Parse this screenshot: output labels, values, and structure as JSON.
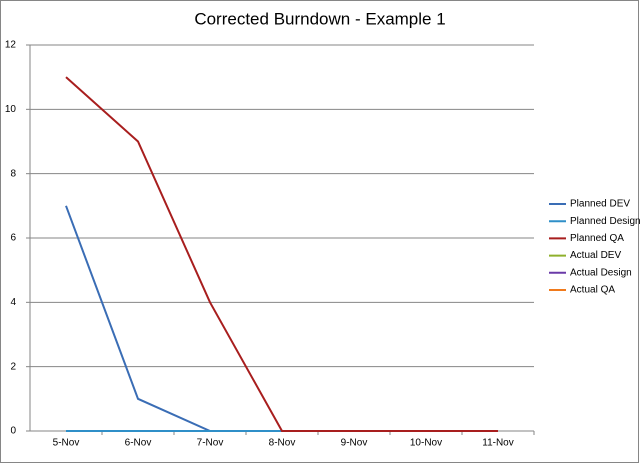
{
  "chart_data": {
    "type": "line",
    "title": "Corrected Burndown - Example 1",
    "categories": [
      "5-Nov",
      "6-Nov",
      "7-Nov",
      "8-Nov",
      "9-Nov",
      "10-Nov",
      "11-Nov"
    ],
    "series": [
      {
        "name": "Planned DEV",
        "color": "#3a6db5",
        "values": [
          7,
          1,
          0,
          0,
          null,
          null,
          null
        ]
      },
      {
        "name": "Planned Design",
        "color": "#2f8fc8",
        "values": [
          0,
          0,
          0,
          0,
          null,
          null,
          null
        ]
      },
      {
        "name": "Planned QA",
        "color": "#a81e1e",
        "values": [
          11,
          9,
          4,
          0,
          0,
          0,
          0
        ]
      },
      {
        "name": "Actual DEV",
        "color": "#8fb02c",
        "values": [
          null,
          null,
          null,
          null,
          null,
          null,
          null
        ]
      },
      {
        "name": "Actual Design",
        "color": "#6a3aa8",
        "values": [
          null,
          null,
          null,
          null,
          null,
          null,
          null
        ]
      },
      {
        "name": "Actual QA",
        "color": "#f07a1c",
        "values": [
          null,
          null,
          null,
          null,
          null,
          null,
          null
        ]
      }
    ],
    "ylim": [
      0,
      12
    ],
    "yticks": [
      0,
      2,
      4,
      6,
      8,
      10,
      12
    ],
    "grid": true,
    "legend": "right"
  }
}
